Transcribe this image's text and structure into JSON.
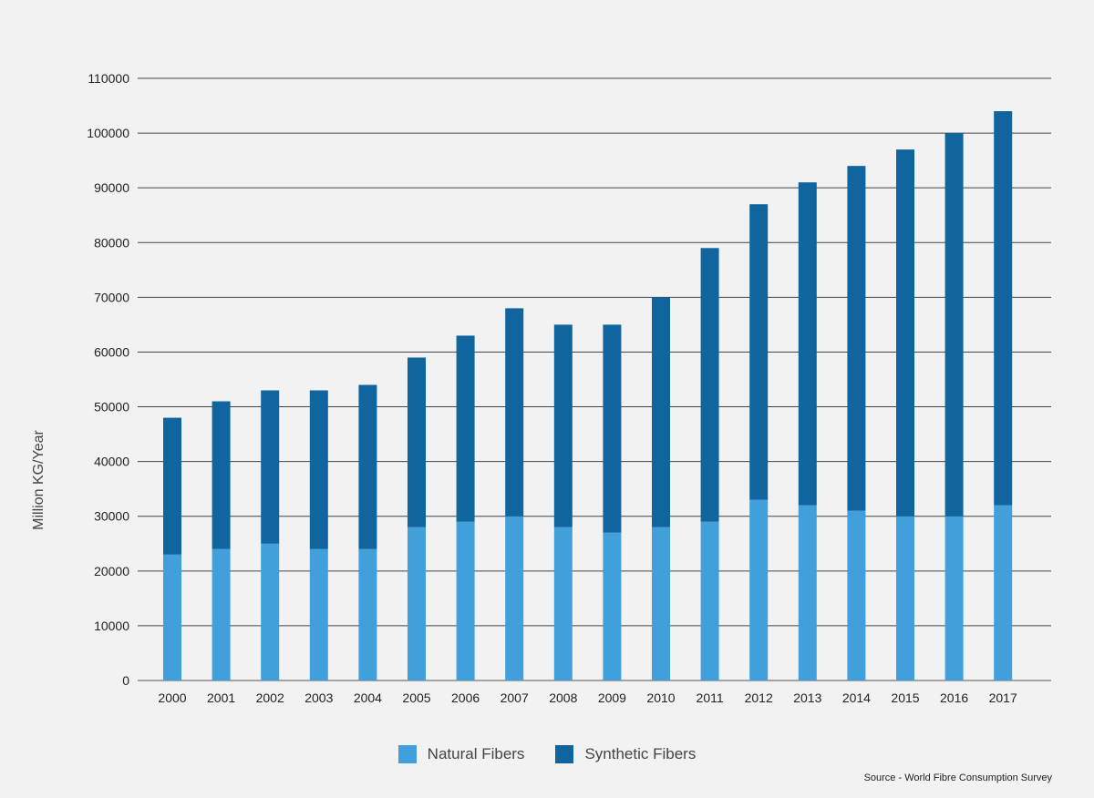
{
  "chart_data": {
    "type": "bar",
    "stacked": true,
    "categories": [
      "2000",
      "2001",
      "2002",
      "2003",
      "2004",
      "2005",
      "2006",
      "2007",
      "2008",
      "2009",
      "2010",
      "2011",
      "2012",
      "2013",
      "2014",
      "2015",
      "2016",
      "2017"
    ],
    "series": [
      {
        "name": "Natural Fibers",
        "color": "#41a0db",
        "values": [
          23000,
          24000,
          25000,
          24000,
          24000,
          28000,
          29000,
          30000,
          28000,
          27000,
          28000,
          29000,
          33000,
          32000,
          31000,
          30000,
          30000,
          32000
        ]
      },
      {
        "name": "Synthetic Fibers",
        "color": "#10659e",
        "values": [
          25000,
          27000,
          28000,
          29000,
          30000,
          31000,
          34000,
          38000,
          37000,
          38000,
          42000,
          50000,
          54000,
          59000,
          63000,
          67000,
          70000,
          72000
        ]
      }
    ],
    "ylabel": "Million KG/Year",
    "ylim": [
      0,
      110000
    ],
    "yticks": [
      "0",
      "10000",
      "20000",
      "30000",
      "40000",
      "50000",
      "60000",
      "70000",
      "80000",
      "90000",
      "100000",
      "110000"
    ],
    "grid": true,
    "legend_position": "bottom-center",
    "source": "Source - World Fibre Consumption Survey"
  }
}
